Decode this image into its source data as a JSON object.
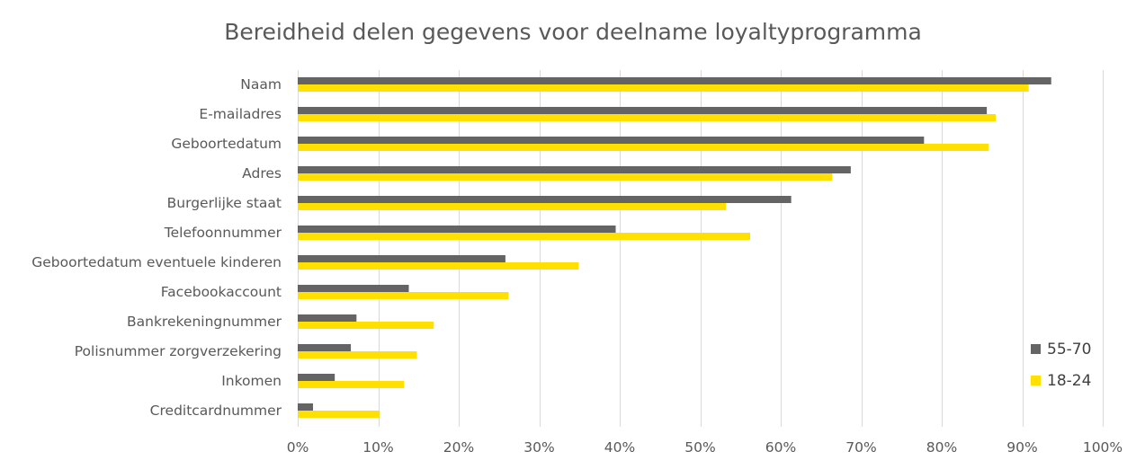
{
  "chart_data": {
    "type": "bar",
    "orientation": "horizontal",
    "title": "Bereidheid delen gegevens voor deelname loyaltyprogramma",
    "xlabel": "",
    "ylabel": "",
    "categories": [
      "Naam",
      "E-mailadres",
      "Geboortedatum",
      "Adres",
      "Burgerlijke staat",
      "Telefoonnummer",
      "Geboortedatum eventuele kinderen",
      "Facebookaccount",
      "Bankrekeningnummer",
      "Polisnummer zorgverzekering",
      "Inkomen",
      "Creditcardnummer"
    ],
    "series": [
      {
        "name": "55-70",
        "color": "#646464",
        "values": [
          93.6,
          85.6,
          77.8,
          68.7,
          61.3,
          39.5,
          25.8,
          13.8,
          7.3,
          6.6,
          4.6,
          1.9
        ]
      },
      {
        "name": "18-24",
        "color": "#ffe000",
        "values": [
          90.8,
          86.7,
          85.8,
          66.4,
          53.2,
          56.2,
          34.9,
          26.2,
          16.9,
          14.8,
          13.2,
          10.2
        ]
      }
    ],
    "xlim": [
      0,
      100
    ],
    "xticks": [
      "0%",
      "10%",
      "20%",
      "30%",
      "40%",
      "50%",
      "60%",
      "70%",
      "80%",
      "90%",
      "100%"
    ],
    "grid": true,
    "legend_position": "right",
    "legend": [
      {
        "label": "55-70",
        "color": "#646464"
      },
      {
        "label": "18-24",
        "color": "#ffe000"
      }
    ]
  }
}
